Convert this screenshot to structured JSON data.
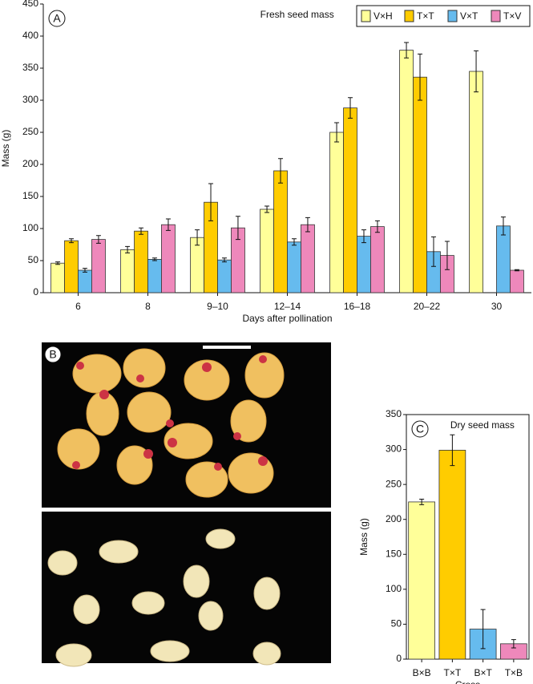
{
  "chart_data": [
    {
      "type": "bar",
      "label": "A",
      "title": "Fresh seed mass",
      "x_label": "Days after pollination",
      "y_label": "Mass (g)",
      "categories": [
        "6",
        "8",
        "9–10",
        "12–14",
        "16–18",
        "20–22",
        "30"
      ],
      "series": [
        {
          "name": "V×H",
          "color": "#ffff99",
          "values": [
            46,
            67,
            86,
            130,
            250,
            378,
            345
          ],
          "errors": [
            2,
            5,
            12,
            5,
            15,
            12,
            32
          ]
        },
        {
          "name": "T×T",
          "color": "#ffcc00",
          "values": [
            81,
            96,
            141,
            190,
            288,
            336,
            null
          ],
          "errors": [
            3,
            5,
            29,
            19,
            16,
            36,
            null
          ]
        },
        {
          "name": "V×T",
          "color": "#66bbee",
          "values": [
            35,
            52,
            51,
            79,
            88,
            64,
            104
          ],
          "errors": [
            3,
            2,
            3,
            5,
            10,
            23,
            14
          ]
        },
        {
          "name": "T×V",
          "color": "#ee88bb",
          "values": [
            83,
            106,
            101,
            106,
            103,
            58,
            35
          ],
          "errors": [
            6,
            9,
            18,
            11,
            9,
            22,
            1
          ]
        }
      ],
      "ylim": [
        0,
        450
      ],
      "yticks": [
        0,
        50,
        100,
        150,
        200,
        250,
        300,
        350,
        400,
        450
      ],
      "legend": "upper right"
    },
    {
      "type": "bar",
      "label": "C",
      "title": "Dry seed mass",
      "x_label": "Cross",
      "y_label": "Mass (g)",
      "categories": [
        "B×B",
        "T×T",
        "B×T",
        "T×B"
      ],
      "values": [
        225,
        299,
        43,
        22
      ],
      "errors": [
        4,
        22,
        28,
        6
      ],
      "colors": [
        "#ffff99",
        "#ffcc00",
        "#66bbee",
        "#ee88bb"
      ],
      "ylim": [
        0,
        350
      ],
      "yticks": [
        0,
        50,
        100,
        150,
        200,
        250,
        300,
        350
      ]
    }
  ],
  "photo": {
    "label": "B"
  }
}
